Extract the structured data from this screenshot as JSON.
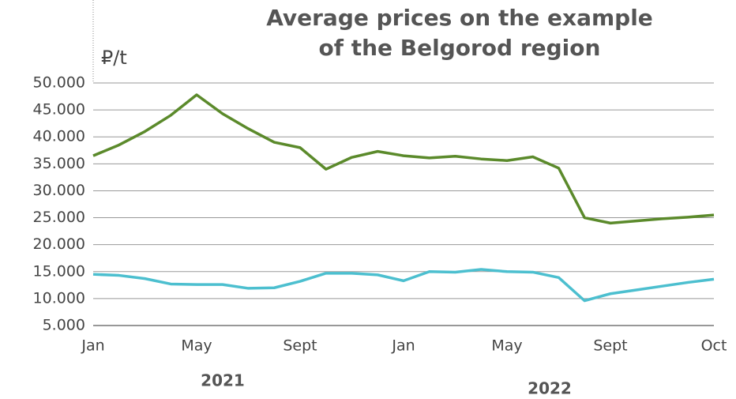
{
  "chart_data": {
    "type": "line",
    "title": [
      "Average prices on the example",
      "of the Belgorod region"
    ],
    "y_label": "₽/t",
    "annotations": [
      "2021",
      "2022"
    ],
    "categories": [
      "Jan",
      null,
      null,
      null,
      "May",
      null,
      null,
      null,
      "Sept",
      null,
      null,
      null,
      "Jan",
      null,
      null,
      null,
      "May",
      null,
      null,
      null,
      "Sept",
      null,
      null,
      null,
      "Oct"
    ],
    "series": [
      {
        "color": "#5b8a2b",
        "values": [
          36500,
          38500,
          41000,
          44000,
          47800,
          44300,
          41500,
          39000,
          38000,
          34000,
          36200,
          37300,
          36500,
          36100,
          36400,
          35900,
          35600,
          36300,
          34200,
          25000,
          24000,
          24400,
          24800,
          25100,
          25500
        ]
      },
      {
        "color": "#4cbfcf",
        "values": [
          14500,
          14300,
          13700,
          12700,
          12600,
          12600,
          11900,
          12000,
          13200,
          14700,
          14700,
          14400,
          13300,
          15000,
          14900,
          15400,
          15000,
          14900,
          13900,
          9600,
          10900,
          11600,
          12300,
          13000,
          13600
        ]
      }
    ],
    "ylim": [
      5000,
      50000
    ],
    "yticks": [
      {
        "value": 5000,
        "label": "5.000"
      },
      {
        "value": 10000,
        "label": "10.000"
      },
      {
        "value": 15000,
        "label": "15.000"
      },
      {
        "value": 20000,
        "label": "20.000"
      },
      {
        "value": 25000,
        "label": "25.000"
      },
      {
        "value": 30000,
        "label": "30.000"
      },
      {
        "value": 35000,
        "label": "35.000"
      },
      {
        "value": 40000,
        "label": "40.000"
      },
      {
        "value": 45000,
        "label": "45.000"
      },
      {
        "value": 50000,
        "label": "50.000"
      }
    ],
    "grid": true
  }
}
